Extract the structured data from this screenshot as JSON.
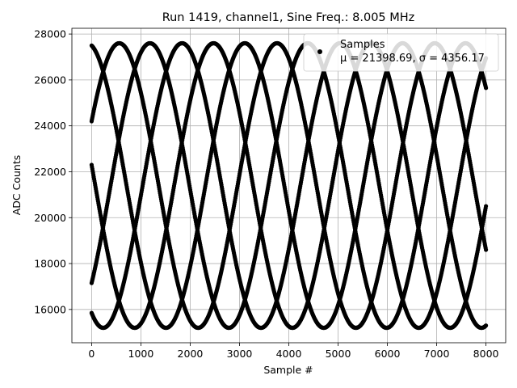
{
  "chart_data": {
    "type": "scatter",
    "title": "Run 1419, channel1, Sine Freq.: 8.005 MHz",
    "xlabel": "Sample #",
    "ylabel": "ADC Counts",
    "xlim": [
      -400,
      8400
    ],
    "ylim": [
      14550,
      28250
    ],
    "xticks": [
      0,
      1000,
      2000,
      3000,
      4000,
      5000,
      6000,
      7000,
      8000
    ],
    "yticks": [
      16000,
      18000,
      20000,
      22000,
      24000,
      26000,
      28000
    ],
    "xtick_labels": [
      "0",
      "1000",
      "2000",
      "3000",
      "4000",
      "5000",
      "6000",
      "7000",
      "8000"
    ],
    "ytick_labels": [
      "16000",
      "18000",
      "20000",
      "22000",
      "24000",
      "26000",
      "28000"
    ],
    "grid": true,
    "legend": {
      "location": "upper right",
      "entries": [
        {
          "label": "Samples",
          "stats": "μ = 21398.69, σ = 4356.17",
          "marker_color": "#000000"
        }
      ]
    },
    "series": [
      {
        "name": "Samples",
        "color": "#000000",
        "marker": "circle",
        "model": {
          "center": 21400,
          "amplitude": 6200,
          "period_samples": 3200,
          "start_values": [
            27500,
            24200,
            22300,
            17150,
            15850
          ],
          "x_start": 0,
          "x_end": 8000,
          "ymax_clip": 27600,
          "ymin_clip": 15200
        }
      }
    ]
  }
}
